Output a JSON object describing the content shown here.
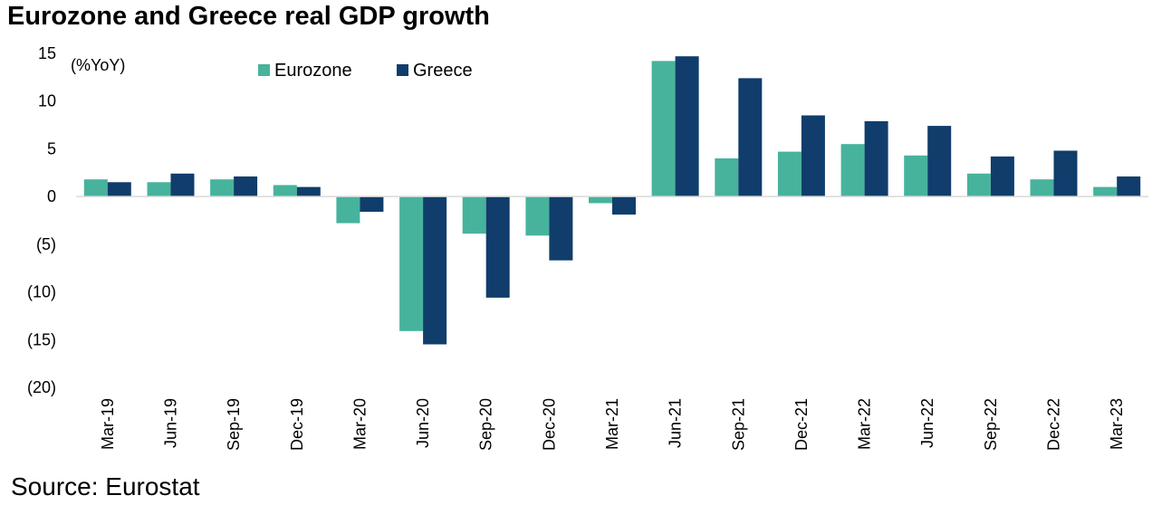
{
  "title": "Eurozone and Greece real GDP growth",
  "source": "Source: Eurostat",
  "chart_data": {
    "type": "bar",
    "title": "Eurozone and Greece real GDP growth",
    "unit_label": "(%YoY)",
    "categories": [
      "Mar-19",
      "Jun-19",
      "Sep-19",
      "Dec-19",
      "Mar-20",
      "Jun-20",
      "Sep-20",
      "Dec-20",
      "Mar-21",
      "Jun-21",
      "Sep-21",
      "Dec-21",
      "Mar-22",
      "Jun-22",
      "Sep-22",
      "Dec-22",
      "Mar-23"
    ],
    "series": [
      {
        "name": "Eurozone",
        "color": "#47b39c",
        "values": [
          1.8,
          1.5,
          1.8,
          1.2,
          -2.8,
          -14.1,
          -3.9,
          -4.1,
          -0.7,
          14.2,
          4.0,
          4.7,
          5.5,
          4.3,
          2.4,
          1.8,
          1.0
        ]
      },
      {
        "name": "Greece",
        "color": "#103d6b",
        "values": [
          1.5,
          2.4,
          2.1,
          1.0,
          -1.6,
          -15.5,
          -10.6,
          -6.7,
          -1.9,
          14.7,
          12.4,
          8.5,
          7.9,
          7.4,
          4.2,
          4.8,
          2.1
        ]
      }
    ],
    "ylim": [
      -20,
      15
    ],
    "yticks": [
      15,
      10,
      5,
      0,
      -5,
      -10,
      -15,
      -20
    ],
    "ytick_labels": [
      "15",
      "10",
      "5",
      "0",
      "(5)",
      "(10)",
      "(15)",
      "(20)"
    ],
    "grid": false,
    "legend_position": "top-left"
  }
}
